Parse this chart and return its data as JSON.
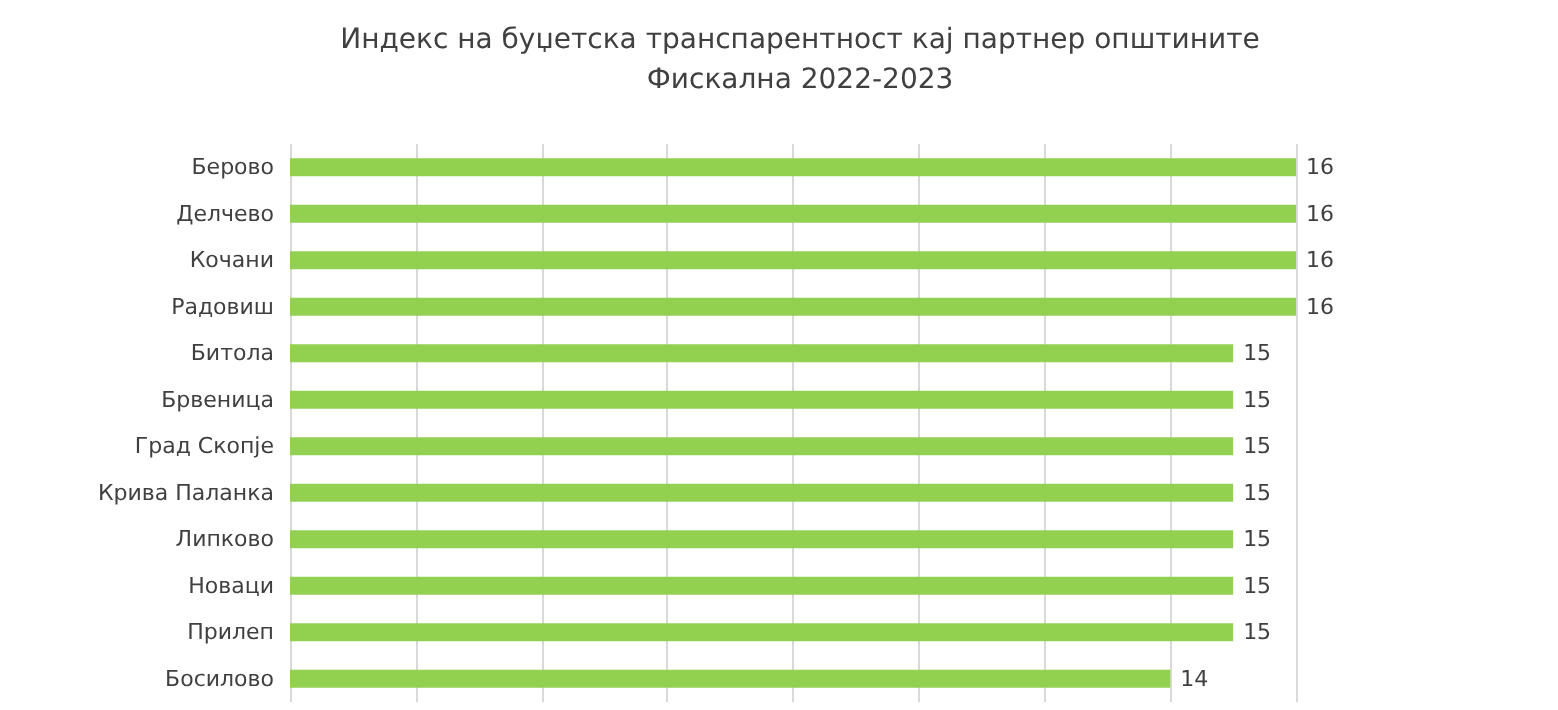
{
  "chart_data": {
    "type": "bar",
    "orientation": "horizontal",
    "title": "Индекс на буџетска транспарентност кај партнер општините",
    "subtitle": "Фискална 2022-2023",
    "categories": [
      "Берово",
      "Делчево",
      "Кочани",
      "Радовиш",
      "Битола",
      "Брвеница",
      "Град Скопје",
      "Крива Паланка",
      "Липково",
      "Новаци",
      "Прилеп",
      "Босилово"
    ],
    "values": [
      16,
      16,
      16,
      16,
      15,
      15,
      15,
      15,
      15,
      15,
      15,
      14
    ],
    "color": "#92d050",
    "data_labels": true,
    "xlim": [
      0,
      16
    ],
    "xticks": [
      {
        "value": 0,
        "label": null
      },
      {
        "value": 2,
        "label": null
      },
      {
        "value": 4,
        "label": null
      },
      {
        "value": 6,
        "label": null
      },
      {
        "value": 8,
        "label": null
      },
      {
        "value": 10,
        "label": null
      },
      {
        "value": 12,
        "label": null
      },
      {
        "value": 14,
        "label": null
      },
      {
        "value": 16,
        "label": null
      }
    ],
    "tick_labels": "y",
    "grid": "x"
  }
}
